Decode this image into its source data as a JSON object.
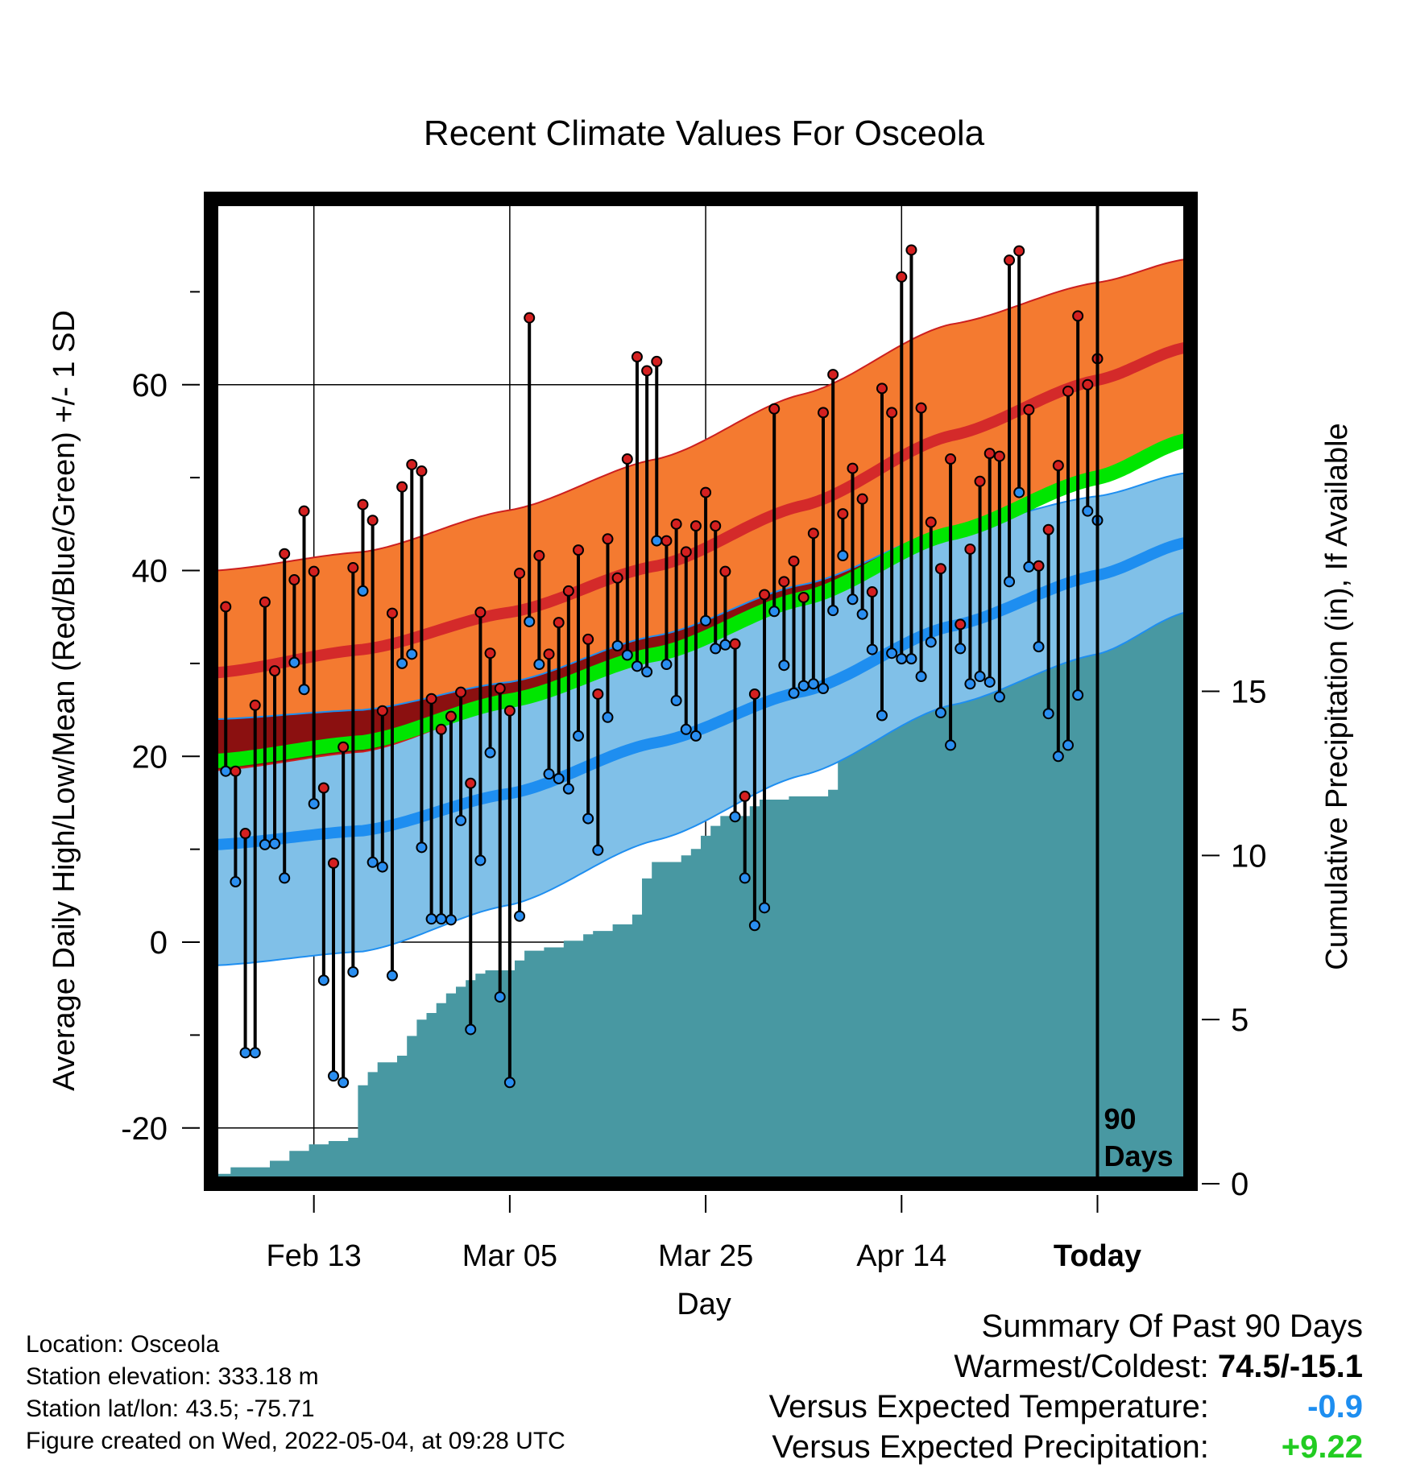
{
  "chart_data": {
    "type": "line",
    "title": "Recent Climate Values For Osceola",
    "xlabel": "Day",
    "ylabel": "Average Daily High/Low/Mean (Red/Blue/Green) +/- 1 SD",
    "y2label": "Cumulative Precipitation (in), If Available",
    "ylim": [
      -26,
      80
    ],
    "y2lim": [
      0,
      30
    ],
    "yticks": [
      -20,
      0,
      20,
      40,
      60
    ],
    "y2ticks": [
      0,
      5,
      10,
      15
    ],
    "xticks": [
      {
        "label": "Feb 13",
        "day": -80
      },
      {
        "label": "Mar 05",
        "day": -60
      },
      {
        "label": "Mar 25",
        "day": -40
      },
      {
        "label": "Apr 14",
        "day": -20
      },
      {
        "label": "Today",
        "day": 0
      }
    ],
    "xlim": [
      -90.5,
      9.5
    ],
    "period_label": [
      "90",
      "Days"
    ],
    "grid": true,
    "normals": {
      "days": [
        -90,
        -75,
        -60,
        -45,
        -30,
        -15,
        0,
        9
      ],
      "high_mean": [
        29.0,
        31.5,
        35.5,
        40.5,
        47.0,
        54.5,
        60.5,
        64.0
      ],
      "high_upper": [
        40.0,
        42.0,
        46.5,
        52.0,
        59.0,
        66.5,
        71.0,
        73.5
      ],
      "high_lower": [
        18.5,
        20.5,
        25.5,
        30.5,
        37.0,
        44.5,
        50.0,
        54.5
      ],
      "low_mean": [
        10.5,
        12.0,
        16.0,
        21.5,
        27.0,
        34.0,
        39.5,
        43.0
      ],
      "low_upper": [
        24.0,
        25.0,
        28.0,
        33.0,
        38.5,
        44.5,
        48.0,
        50.5
      ],
      "low_lower": [
        -2.5,
        -1.0,
        4.0,
        11.0,
        18.0,
        25.5,
        31.0,
        35.5
      ],
      "mean_mean": [
        19.5,
        21.5,
        26.0,
        31.0,
        37.0,
        44.0,
        50.0,
        54.0
      ]
    },
    "series": [
      {
        "name": "High",
        "values": [
          36.1,
          18.4,
          11.7,
          25.5,
          36.6,
          29.2,
          41.8,
          39.0,
          46.4,
          39.9,
          16.6,
          8.5,
          21.0,
          40.3,
          47.1,
          45.4,
          24.9,
          35.4,
          49.0,
          51.4,
          50.7,
          26.2,
          22.9,
          24.3,
          26.9,
          17.1,
          35.5,
          31.1,
          27.3,
          24.9,
          39.7,
          67.2,
          41.6,
          31.0,
          34.4,
          37.8,
          42.2,
          32.6,
          26.7,
          43.4,
          39.2,
          52.0,
          63.0,
          61.5,
          62.5,
          43.2,
          45.0,
          42.0,
          44.8,
          48.4,
          44.8,
          39.9,
          32.1,
          15.7,
          26.7,
          37.4,
          57.4,
          38.8,
          41.0,
          37.1,
          44.0,
          57.0,
          61.1,
          46.1,
          51.0,
          47.7,
          37.7,
          59.6,
          57.0,
          71.6,
          74.5,
          57.5,
          45.2,
          40.2,
          52.0,
          34.2,
          42.3,
          49.6,
          52.6,
          52.3,
          73.4,
          74.4,
          57.3,
          40.5,
          44.4,
          51.3,
          59.3,
          67.4,
          60.0,
          62.8
        ]
      },
      {
        "name": "Low",
        "values": [
          18.4,
          6.5,
          -11.9,
          -11.9,
          10.5,
          10.6,
          6.9,
          30.1,
          27.2,
          14.9,
          -4.1,
          -14.4,
          -15.1,
          -3.2,
          37.8,
          8.6,
          8.1,
          -3.6,
          30.0,
          31.0,
          10.2,
          2.5,
          2.5,
          2.4,
          13.1,
          -9.4,
          8.8,
          20.4,
          -5.9,
          -15.1,
          2.8,
          34.5,
          29.9,
          18.1,
          17.6,
          16.5,
          22.2,
          13.3,
          9.9,
          24.2,
          31.9,
          30.9,
          29.7,
          29.1,
          43.2,
          29.9,
          26.0,
          22.9,
          22.2,
          34.6,
          31.6,
          32.0,
          13.5,
          6.9,
          1.8,
          3.7,
          35.6,
          29.8,
          26.8,
          27.6,
          27.8,
          27.3,
          35.7,
          41.6,
          36.9,
          35.3,
          31.5,
          24.4,
          31.1,
          30.5,
          30.5,
          28.6,
          32.3,
          24.7,
          21.2,
          31.6,
          27.8,
          28.6,
          28.0,
          26.4,
          38.8,
          48.4,
          40.4,
          31.8,
          24.6,
          20.0,
          21.2,
          26.6,
          46.4,
          45.4
        ]
      }
    ],
    "precipitation": {
      "name": "Cumulative Precipitation",
      "steps": [
        [
          -90,
          0.3
        ],
        [
          -88,
          0.5
        ],
        [
          -84,
          0.7
        ],
        [
          -82,
          1.0
        ],
        [
          -80,
          1.2
        ],
        [
          -78,
          1.3
        ],
        [
          -76,
          1.4
        ],
        [
          -75,
          3.0
        ],
        [
          -74,
          3.4
        ],
        [
          -73,
          3.7
        ],
        [
          -71,
          3.9
        ],
        [
          -70,
          4.5
        ],
        [
          -69,
          5.0
        ],
        [
          -68,
          5.2
        ],
        [
          -67,
          5.5
        ],
        [
          -66,
          5.8
        ],
        [
          -65,
          6.0
        ],
        [
          -64,
          6.2
        ],
        [
          -63,
          6.4
        ],
        [
          -62,
          6.5
        ],
        [
          -59,
          6.8
        ],
        [
          -58,
          7.1
        ],
        [
          -56,
          7.2
        ],
        [
          -54,
          7.4
        ],
        [
          -52,
          7.6
        ],
        [
          -51,
          7.7
        ],
        [
          -49,
          7.9
        ],
        [
          -47,
          8.2
        ],
        [
          -46,
          9.3
        ],
        [
          -45,
          9.8
        ],
        [
          -42,
          10.0
        ],
        [
          -41,
          10.2
        ],
        [
          -40,
          10.6
        ],
        [
          -39,
          10.9
        ],
        [
          -38,
          11.2
        ],
        [
          -35,
          11.5
        ],
        [
          -34,
          11.7
        ],
        [
          -31,
          11.8
        ],
        [
          -29,
          11.8
        ],
        [
          -27,
          12.0
        ],
        [
          -26,
          13.5
        ],
        [
          -25,
          13.7
        ],
        [
          -24,
          13.9
        ],
        [
          -22,
          14.0
        ],
        [
          -21,
          14.3
        ],
        [
          -20,
          14.5
        ],
        [
          -19,
          14.8
        ],
        [
          -18,
          15.0
        ],
        [
          -17,
          15.2
        ],
        [
          -16,
          15.5
        ],
        [
          -15,
          15.8
        ],
        [
          -14,
          16.0
        ],
        [
          -13,
          16.3
        ],
        [
          -12,
          16.5
        ],
        [
          -11,
          17.2
        ],
        [
          -10,
          17.7
        ],
        [
          -9,
          17.9
        ],
        [
          -8,
          18.0
        ],
        [
          -7,
          18.1
        ],
        [
          -5,
          18.2
        ],
        [
          -4,
          18.3
        ],
        [
          -3,
          18.5
        ],
        [
          -1,
          18.7
        ],
        [
          0,
          18.7
        ],
        [
          9,
          18.7
        ]
      ]
    }
  },
  "footer": {
    "location": "Location: Osceola",
    "elevation": "Station elevation: 333.18 m",
    "latlon": "Station lat/lon: 43.5; -75.71",
    "created": "Figure created on Wed, 2022-05-04, at 09:28 UTC"
  },
  "summary": {
    "title": "Summary Of Past 90 Days",
    "warmest_label": "Warmest/Coldest:",
    "warmest_value": "74.5/-15.1",
    "temp_label": "Versus Expected Temperature:",
    "temp_value": "-0.9",
    "precip_label": "Versus Expected Precipitation:",
    "precip_value": "+9.22"
  },
  "colors": {
    "high_band": "#f47a30",
    "high_line": "#d42a2a",
    "high_border": "#cc1f1f",
    "low_band": "#80c0e8",
    "low_line": "#1e8ef0",
    "mean_line": "#00e600",
    "overlap": "#8b1010",
    "precip": "#4898a2",
    "high_dot": "#d42020",
    "low_dot": "#2a8ef0",
    "temp_value": "#1e8ef0",
    "precip_value": "#22cc22"
  }
}
